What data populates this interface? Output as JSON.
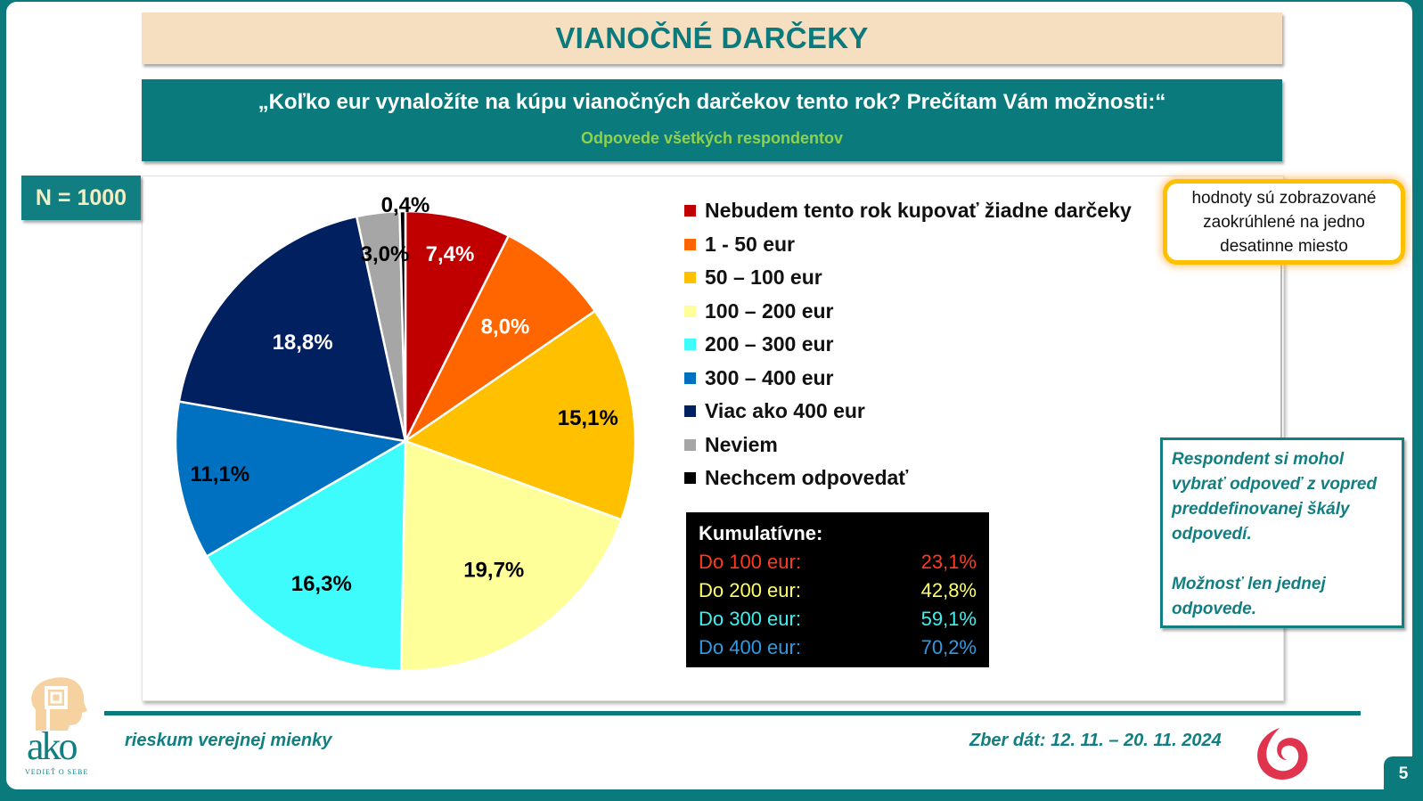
{
  "header": {
    "title": "VIANOČNÉ DARČEKY",
    "question": "„Koľko eur vynaložíte na kúpu vianočných darčekov tento rok? Prečítam Vám možnosti:“",
    "subtitle": "Odpovede všetkých respondentov"
  },
  "sample": {
    "label": "N = 1000"
  },
  "note": {
    "text": "hodnoty sú zobrazované zaokrúhlené na jedno desatinne miesto"
  },
  "info": {
    "paragraph1": "Respondent si mohol vybrať odpoveď z vopred preddefinovanej škály odpovedí.",
    "paragraph2": "Možnosť len jednej odpovede."
  },
  "cumulative": {
    "title": "Kumulatívne:",
    "rows": [
      {
        "label": "Do 100 eur:",
        "value": "23,1%",
        "color": "#ff3b1f"
      },
      {
        "label": "Do 200 eur:",
        "value": "42,8%",
        "color": "#ffff66"
      },
      {
        "label": "Do 300 eur:",
        "value": "59,1%",
        "color": "#3ff0f0"
      },
      {
        "label": "Do 400 eur:",
        "value": "70,2%",
        "color": "#2e9be6"
      }
    ]
  },
  "footer": {
    "left": "rieskum verejnej mienky",
    "right": "Zber dát: 12. 11. – 20. 11. 2024",
    "page": "5",
    "logo_text": "ako",
    "logo_tagline": "VEDIEŤ O SEBE"
  },
  "chart_data": {
    "type": "pie",
    "title": "VIANOČNÉ DARČEKY",
    "start_angle_deg": 0,
    "direction": "clockwise",
    "legend_position": "right",
    "categories": [
      "Nebudem tento rok kupovať žiadne darčeky",
      "1 - 50 eur",
      "50 – 100 eur",
      "100 – 200 eur",
      "200 – 300 eur",
      "300 – 400 eur",
      "Viac ako 400 eur",
      "Neviem",
      "Nechcem odpovedať"
    ],
    "values": [
      7.4,
      8.0,
      15.1,
      19.7,
      16.3,
      11.1,
      18.8,
      3.0,
      0.4
    ],
    "labels": [
      "7,4%",
      "8,0%",
      "15,1%",
      "19,7%",
      "16,3%",
      "11,1%",
      "18,8%",
      "3,0%",
      "0,4%"
    ],
    "colors": [
      "#c00000",
      "#ff6600",
      "#ffc000",
      "#ffff99",
      "#3ffcfc",
      "#0070c0",
      "#002060",
      "#a6a6a6",
      "#000000"
    ],
    "label_colors": [
      "#ffffff",
      "#ffffff",
      "#000000",
      "#000000",
      "#000000",
      "#000000",
      "#ffffff",
      "#000000",
      "#000000"
    ]
  }
}
